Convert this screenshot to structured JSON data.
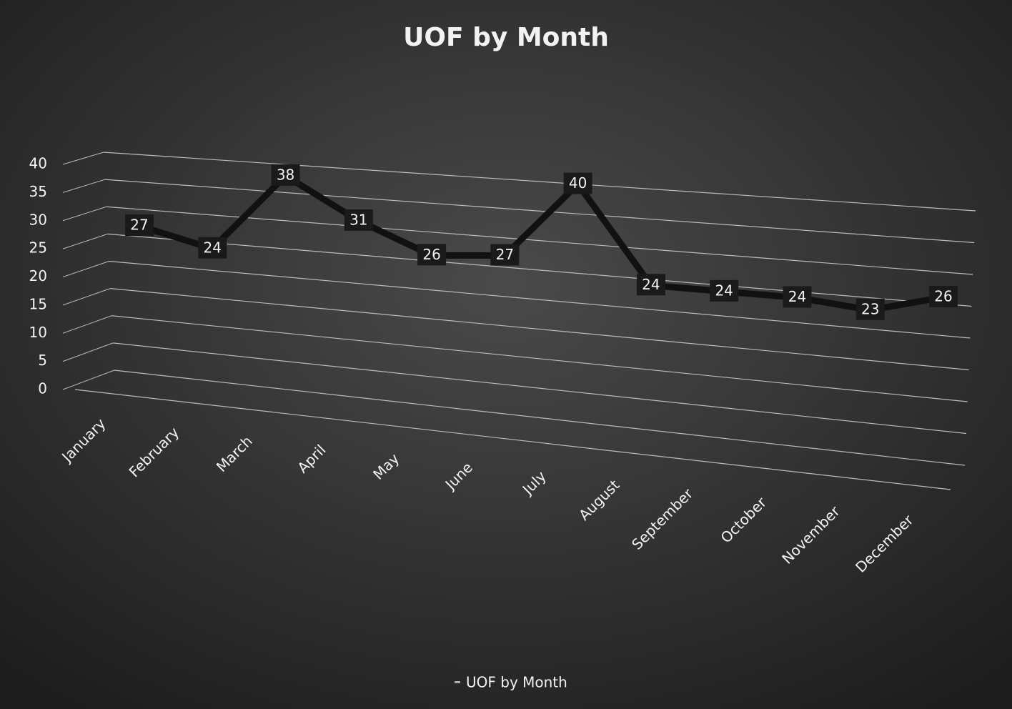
{
  "chart_data": {
    "type": "line",
    "title": "UOF by Month",
    "categories": [
      "January",
      "February",
      "March",
      "April",
      "May",
      "June",
      "July",
      "August",
      "September",
      "October",
      "November",
      "December"
    ],
    "series": [
      {
        "name": "UOF by Month",
        "color": "#111111",
        "values": [
          27,
          24,
          38,
          31,
          26,
          27,
          40,
          24,
          24,
          24,
          23,
          26
        ]
      }
    ],
    "ylim": [
      0,
      40
    ],
    "yticks": [
      0,
      5,
      10,
      15,
      20,
      25,
      30,
      35,
      40
    ],
    "grid": true,
    "legend": "bottom"
  }
}
